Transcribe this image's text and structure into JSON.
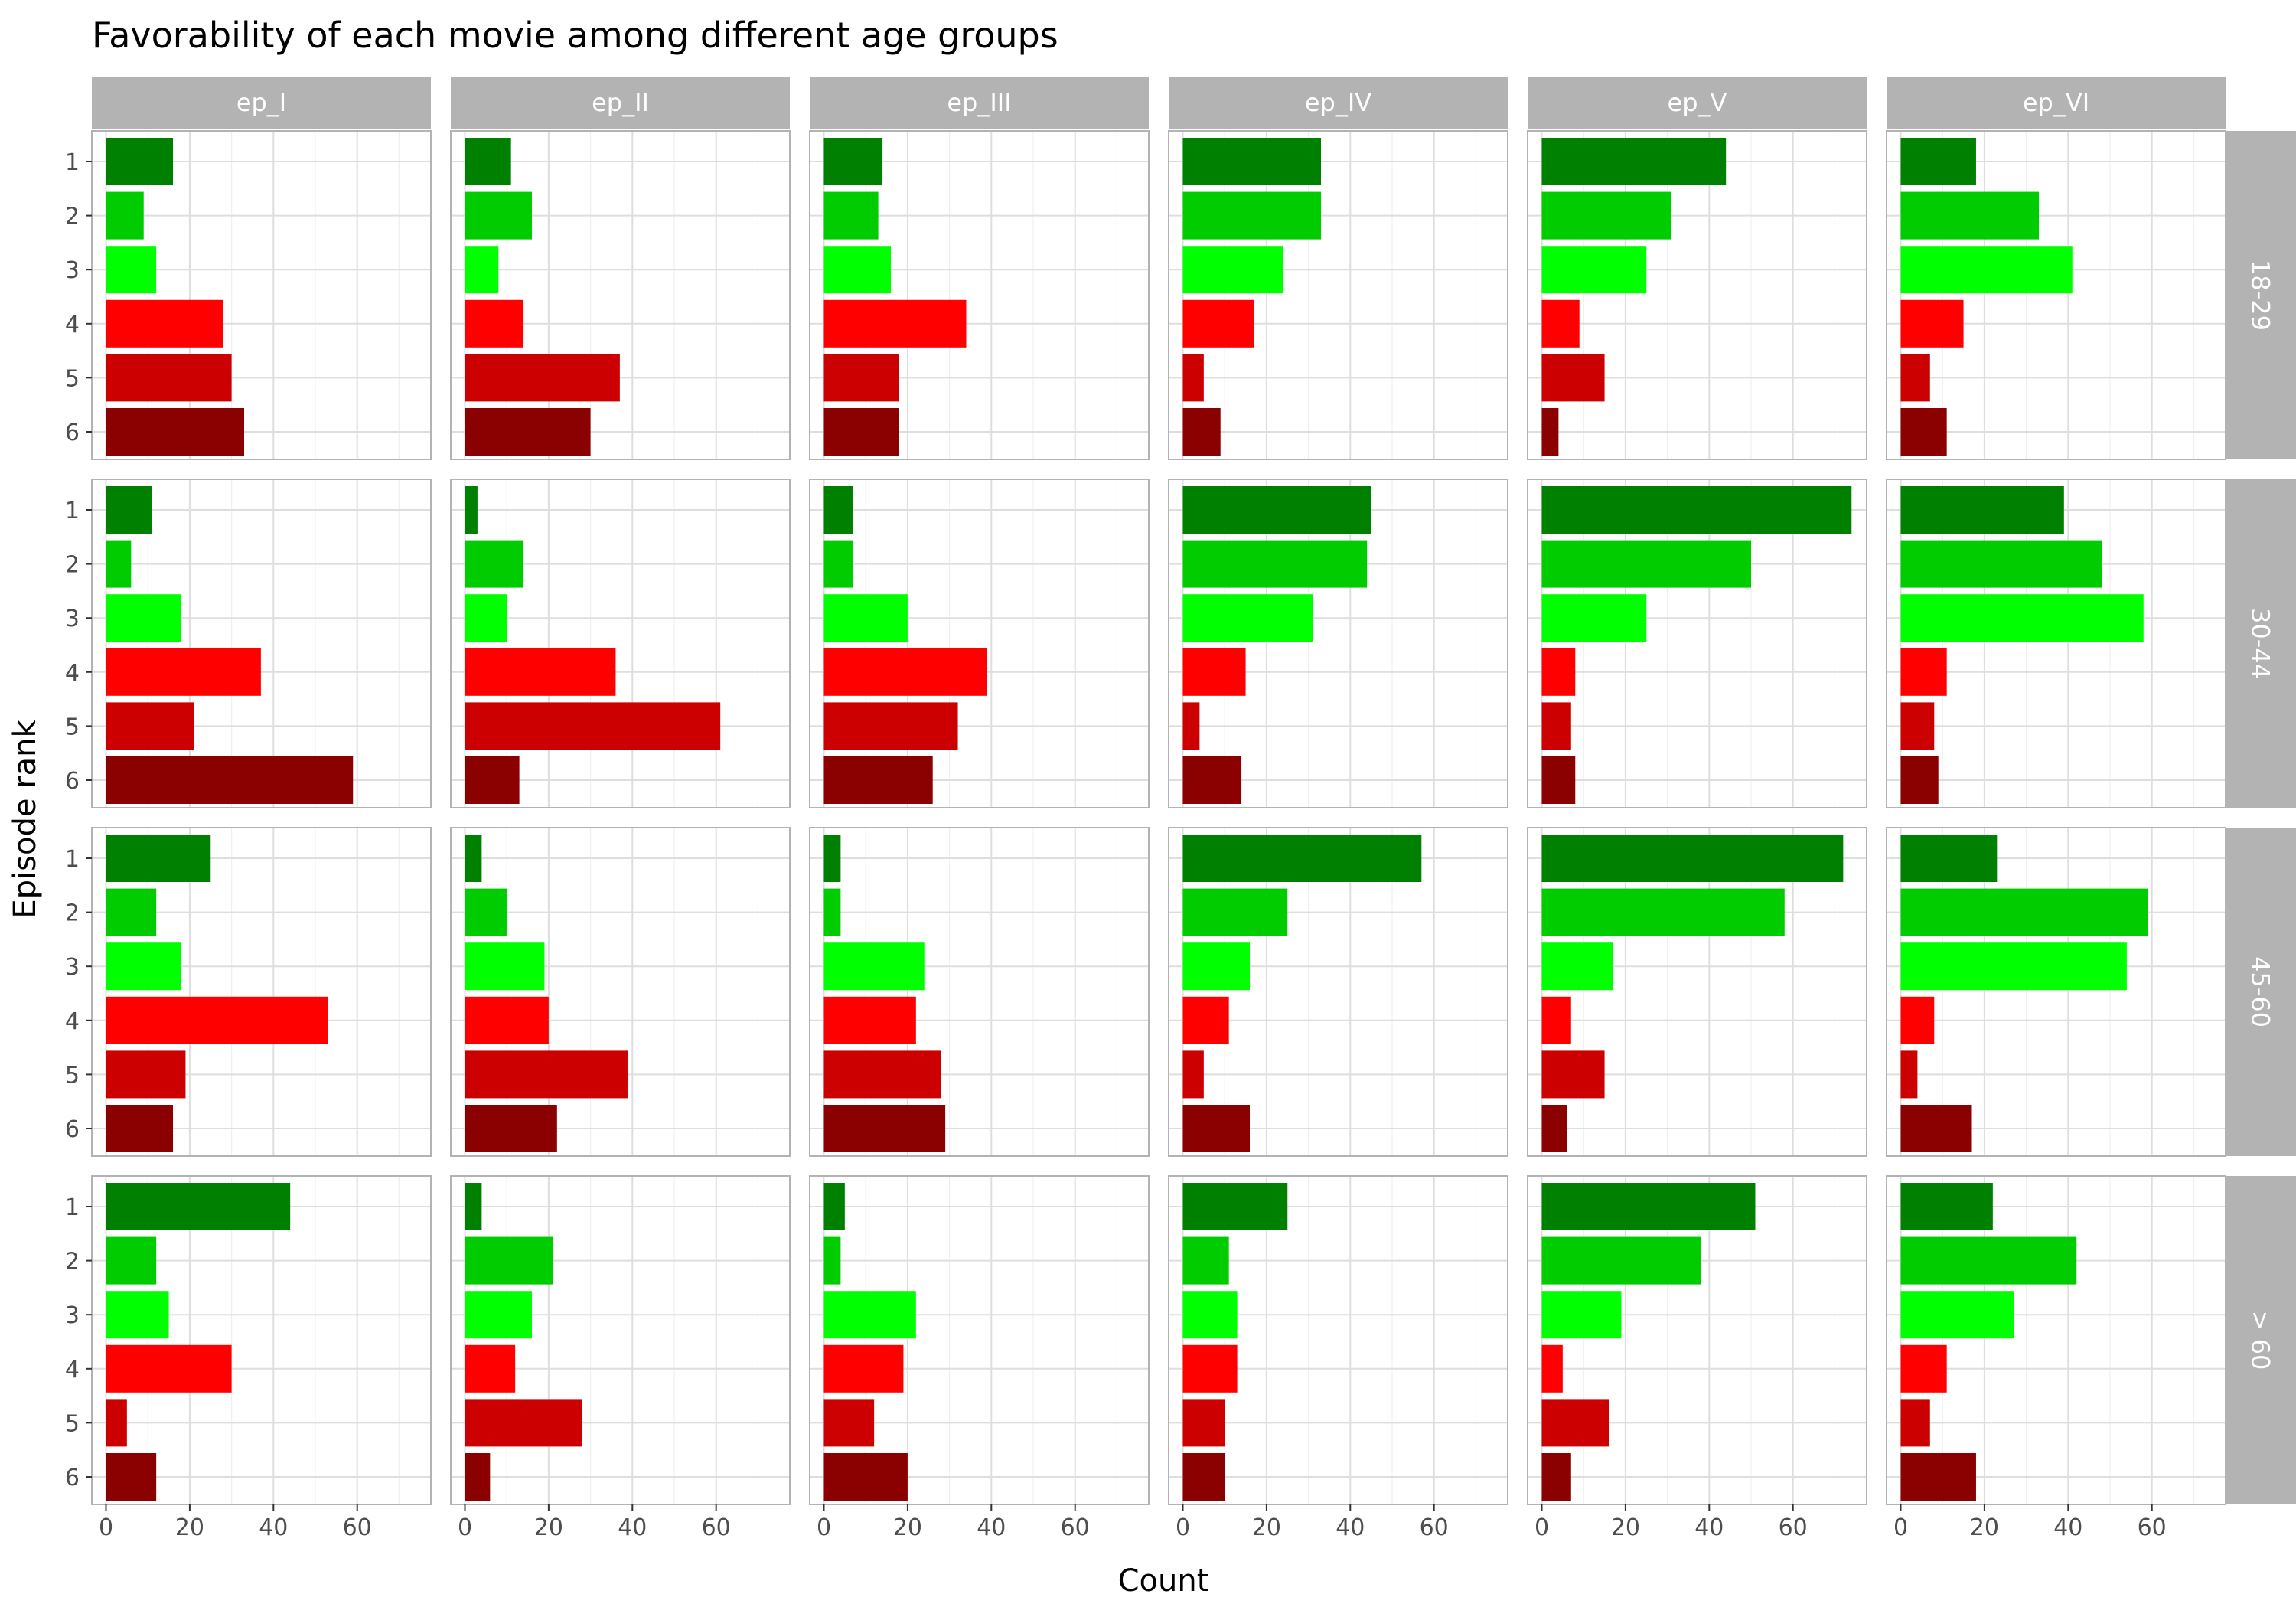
{
  "chart_data": {
    "type": "bar",
    "orientation": "horizontal",
    "title": "Favorability of each movie among different age groups",
    "xlabel": "Count",
    "ylabel": "Episode rank",
    "xlim": [
      0,
      75
    ],
    "x_ticks": [
      0,
      20,
      40,
      60
    ],
    "ranks": [
      "1",
      "2",
      "3",
      "4",
      "5",
      "6"
    ],
    "rank_colors": [
      "#008000",
      "#00CC00",
      "#00FF00",
      "#FF0000",
      "#CC0000",
      "#8B0000"
    ],
    "grid": true,
    "legend": "none",
    "episodes": [
      "ep_I",
      "ep_II",
      "ep_III",
      "ep_IV",
      "ep_V",
      "ep_VI"
    ],
    "age_groups": [
      "18-29",
      "30-44",
      "45-60",
      "> 60"
    ],
    "values": {
      "18-29": {
        "ep_I": [
          16,
          9,
          12,
          28,
          30,
          33
        ],
        "ep_II": [
          11,
          16,
          8,
          14,
          37,
          30
        ],
        "ep_III": [
          14,
          13,
          16,
          34,
          18,
          18
        ],
        "ep_IV": [
          33,
          33,
          24,
          17,
          5,
          9
        ],
        "ep_V": [
          44,
          31,
          25,
          9,
          15,
          4
        ],
        "ep_VI": [
          18,
          33,
          41,
          15,
          7,
          11
        ]
      },
      "30-44": {
        "ep_I": [
          11,
          6,
          18,
          37,
          21,
          59
        ],
        "ep_II": [
          3,
          14,
          10,
          36,
          61,
          13
        ],
        "ep_III": [
          7,
          7,
          20,
          39,
          32,
          26
        ],
        "ep_IV": [
          45,
          44,
          31,
          15,
          4,
          14
        ],
        "ep_V": [
          74,
          50,
          25,
          8,
          7,
          8
        ],
        "ep_VI": [
          39,
          48,
          58,
          11,
          8,
          9
        ]
      },
      "45-60": {
        "ep_I": [
          25,
          12,
          18,
          53,
          19,
          16
        ],
        "ep_II": [
          4,
          10,
          19,
          20,
          39,
          22
        ],
        "ep_III": [
          4,
          4,
          24,
          22,
          28,
          29
        ],
        "ep_IV": [
          57,
          25,
          16,
          11,
          5,
          16
        ],
        "ep_V": [
          72,
          58,
          17,
          7,
          15,
          6
        ],
        "ep_VI": [
          23,
          59,
          54,
          8,
          4,
          17
        ]
      },
      "> 60": {
        "ep_I": [
          44,
          12,
          15,
          30,
          5,
          12
        ],
        "ep_II": [
          4,
          21,
          16,
          12,
          28,
          6
        ],
        "ep_III": [
          5,
          4,
          22,
          19,
          12,
          20
        ],
        "ep_IV": [
          25,
          11,
          13,
          13,
          10,
          10
        ],
        "ep_V": [
          51,
          38,
          19,
          5,
          16,
          7
        ],
        "ep_VI": [
          22,
          42,
          27,
          11,
          7,
          18
        ]
      }
    }
  },
  "colors": {
    "panel_border": "#b3b3b3",
    "strip_fill": "#b3b3b3",
    "grid_major": "#dedede",
    "grid_minor": "#efefef"
  }
}
